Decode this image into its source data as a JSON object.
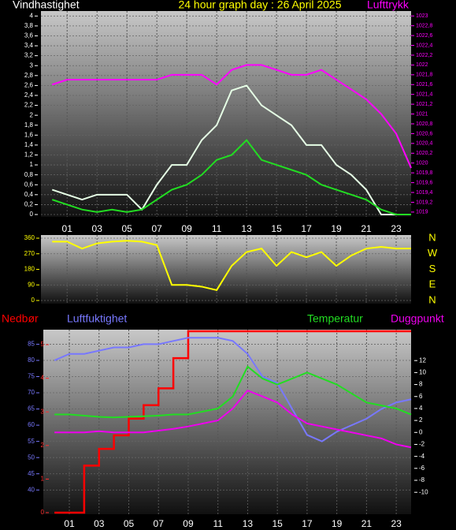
{
  "chart_data": [
    {
      "type": "line",
      "title": "24 hour graph day : 26 April 2025",
      "ylabel": "Vindhastighet",
      "y2label": "Lufttrykk",
      "grid": true,
      "x": [
        0,
        1,
        2,
        3,
        4,
        5,
        6,
        7,
        8,
        9,
        10,
        11,
        12,
        13,
        14,
        15,
        16,
        17,
        18,
        19,
        20,
        21,
        22,
        23,
        24
      ],
      "xlim": [
        -0.75,
        24
      ],
      "xticks": [
        {
          "value": 1,
          "label": "01"
        },
        {
          "value": 3,
          "label": "03"
        },
        {
          "value": 5,
          "label": "05"
        },
        {
          "value": 7,
          "label": "07"
        },
        {
          "value": 9,
          "label": "09"
        },
        {
          "value": 11,
          "label": "11"
        },
        {
          "value": 13,
          "label": "13"
        },
        {
          "value": 15,
          "label": "15"
        },
        {
          "value": 17,
          "label": "17"
        },
        {
          "value": 19,
          "label": "19"
        },
        {
          "value": 21,
          "label": "21"
        },
        {
          "value": 23,
          "label": "23"
        }
      ],
      "ylim": [
        0,
        4.1
      ],
      "yticks": [
        0,
        {
          "value": 0.2,
          "label": "0,2"
        },
        {
          "value": 0.4,
          "label": "0,4"
        },
        {
          "value": 0.6,
          "label": "0,6"
        },
        {
          "value": 0.8,
          "label": "0,8"
        },
        1,
        {
          "value": 1.2,
          "label": "1,2"
        },
        {
          "value": 1.4,
          "label": "1,4"
        },
        {
          "value": 1.6,
          "label": "1,6"
        },
        {
          "value": 1.8,
          "label": "1,8"
        },
        2,
        {
          "value": 2.2,
          "label": "2,2"
        },
        {
          "value": 2.4,
          "label": "2,4"
        },
        {
          "value": 2.6,
          "label": "2,6"
        },
        {
          "value": 2.8,
          "label": "2,8"
        },
        3,
        {
          "value": 3.2,
          "label": "3,2"
        },
        {
          "value": 3.4,
          "label": "3,4"
        },
        {
          "value": 3.6,
          "label": "3,6"
        },
        {
          "value": 3.8,
          "label": "3,8"
        },
        4
      ],
      "y2lim": [
        1018.95,
        1023.1
      ],
      "y2ticks": [
        1019,
        {
          "value": 1019.2,
          "label": "1019,2"
        },
        {
          "value": 1019.4,
          "label": "1019,4"
        },
        {
          "value": 1019.6,
          "label": "1019,6"
        },
        {
          "value": 1019.8,
          "label": "1019,8"
        },
        1020,
        {
          "value": 1020.2,
          "label": "1020,2"
        },
        {
          "value": 1020.4,
          "label": "1020,4"
        },
        {
          "value": 1020.6,
          "label": "1020,6"
        },
        {
          "value": 1020.8,
          "label": "1020,8"
        },
        1021,
        {
          "value": 1021.2,
          "label": "1021,2"
        },
        {
          "value": 1021.4,
          "label": "1021,4"
        },
        {
          "value": 1021.6,
          "label": "1021,6"
        },
        {
          "value": 1021.8,
          "label": "1021,8"
        },
        1022,
        {
          "value": 1022.2,
          "label": "1022,2"
        },
        {
          "value": 1022.4,
          "label": "1022,4"
        },
        {
          "value": 1022.6,
          "label": "1022,6"
        },
        {
          "value": 1022.8,
          "label": "1022,8"
        },
        1023
      ],
      "series": [
        {
          "color": "#e6ffe6",
          "values": [
            0.5,
            0.4,
            0.3,
            0.4,
            0.4,
            0.4,
            0.1,
            0.6,
            1.0,
            1.0,
            1.5,
            1.8,
            2.5,
            2.6,
            2.2,
            2.0,
            1.8,
            1.4,
            1.4,
            1.0,
            0.8,
            0.5,
            0,
            0,
            0
          ]
        },
        {
          "color": "#22dd22",
          "values": [
            0.3,
            0.2,
            0.1,
            0.05,
            0.1,
            0.05,
            0.1,
            0.3,
            0.5,
            0.6,
            0.8,
            1.1,
            1.2,
            1.5,
            1.1,
            1.0,
            0.9,
            0.8,
            0.6,
            0.5,
            0.4,
            0.3,
            0.1,
            0,
            0
          ]
        },
        {
          "color": "#ff00ff",
          "axis": "y2",
          "values": [
            1021.6,
            1021.7,
            1021.7,
            1021.7,
            1021.7,
            1021.7,
            1021.7,
            1021.7,
            1021.8,
            1021.8,
            1021.8,
            1021.6,
            1021.9,
            1022,
            1022,
            1021.9,
            1021.8,
            1021.8,
            1021.9,
            1021.7,
            1021.5,
            1021.3,
            1021,
            1020.6,
            1019.9
          ]
        }
      ]
    },
    {
      "type": "line",
      "grid": true,
      "compass": [
        "N",
        "W",
        "S",
        "E",
        "N"
      ],
      "x": [
        0,
        1,
        2,
        3,
        4,
        5,
        6,
        7,
        8,
        9,
        10,
        11,
        12,
        13,
        14,
        15,
        16,
        17,
        18,
        19,
        20,
        21,
        22,
        23,
        24
      ],
      "xlim": [
        -0.75,
        24
      ],
      "xticks": [
        1,
        3,
        5,
        7,
        9,
        11,
        13,
        15,
        17,
        19,
        21,
        23
      ],
      "ylim": [
        0,
        360
      ],
      "yticks": [
        0,
        90,
        180,
        270,
        360
      ],
      "series": [
        {
          "color": "#ffff00",
          "values": [
            340,
            340,
            300,
            330,
            340,
            345,
            340,
            320,
            90,
            90,
            80,
            60,
            200,
            280,
            300,
            200,
            280,
            250,
            280,
            200,
            260,
            300,
            310,
            300,
            300
          ]
        }
      ]
    },
    {
      "type": "line",
      "grid": true,
      "x": [
        0,
        1,
        2,
        3,
        4,
        5,
        6,
        7,
        8,
        9,
        10,
        11,
        12,
        13,
        14,
        15,
        16,
        17,
        18,
        19,
        20,
        21,
        22,
        23,
        24
      ],
      "xlim": [
        -0.75,
        24
      ],
      "xticks": [
        {
          "value": 1,
          "label": "01"
        },
        {
          "value": 3,
          "label": "03"
        },
        {
          "value": 5,
          "label": "05"
        },
        {
          "value": 7,
          "label": "07"
        },
        {
          "value": 9,
          "label": "09"
        },
        {
          "value": 11,
          "label": "11"
        },
        {
          "value": 13,
          "label": "13"
        },
        {
          "value": 15,
          "label": "15"
        },
        {
          "value": 17,
          "label": "17"
        },
        {
          "value": 19,
          "label": "19"
        },
        {
          "value": 21,
          "label": "21"
        },
        {
          "value": 23,
          "label": "23"
        }
      ],
      "ylim": [
        33,
        89
      ],
      "yticks": [
        40,
        45,
        50,
        55,
        60,
        65,
        70,
        75,
        80,
        85
      ],
      "y2lim": [
        -13.4,
        16.9
      ],
      "y2ticks": [
        -10,
        -8,
        -6,
        -4,
        -2,
        0,
        2,
        4,
        6,
        8,
        10,
        12
      ],
      "y3lim": [
        0,
        5.4
      ],
      "y3ticks": [
        0,
        1,
        2,
        3,
        4,
        5
      ],
      "series": [
        {
          "name": "Nedbør",
          "color": "#ff0000",
          "axis": "y3",
          "step": true,
          "values": [
            0,
            0,
            1.4,
            1.9,
            2.3,
            2.8,
            3.2,
            3.7,
            4.6,
            5.4,
            5.4,
            5.4,
            5.4,
            5.4,
            5.4,
            5.4,
            5.4,
            5.4,
            5.4,
            5.4,
            5.4,
            5.4,
            5.4,
            5.4,
            5.4
          ]
        },
        {
          "name": "Luftfuktighet",
          "color": "#7878ff",
          "values": [
            80,
            82,
            82,
            83,
            84,
            84,
            85,
            85,
            86,
            87,
            87,
            87,
            86,
            82,
            75,
            73,
            65,
            57,
            55,
            58,
            60,
            62,
            65,
            67,
            68
          ]
        },
        {
          "name": "Temperatur",
          "color": "#22dd22",
          "axis": "y2",
          "values": [
            3,
            3,
            2.8,
            2.6,
            2.5,
            2.6,
            2.7,
            2.8,
            3,
            3,
            3.5,
            4,
            6,
            11,
            9,
            8,
            9,
            10,
            9,
            8,
            6.5,
            5,
            4.5,
            4,
            3
          ]
        },
        {
          "name": "Duggpunkt",
          "color": "#ee00ee",
          "axis": "y2",
          "values": [
            0,
            0,
            0,
            0.2,
            0,
            0,
            0,
            0.3,
            0.6,
            1,
            1.5,
            2,
            4,
            7,
            6,
            5,
            3,
            1.5,
            1,
            0.5,
            0,
            -0.5,
            -1,
            -2,
            -2.5
          ]
        }
      ]
    }
  ]
}
